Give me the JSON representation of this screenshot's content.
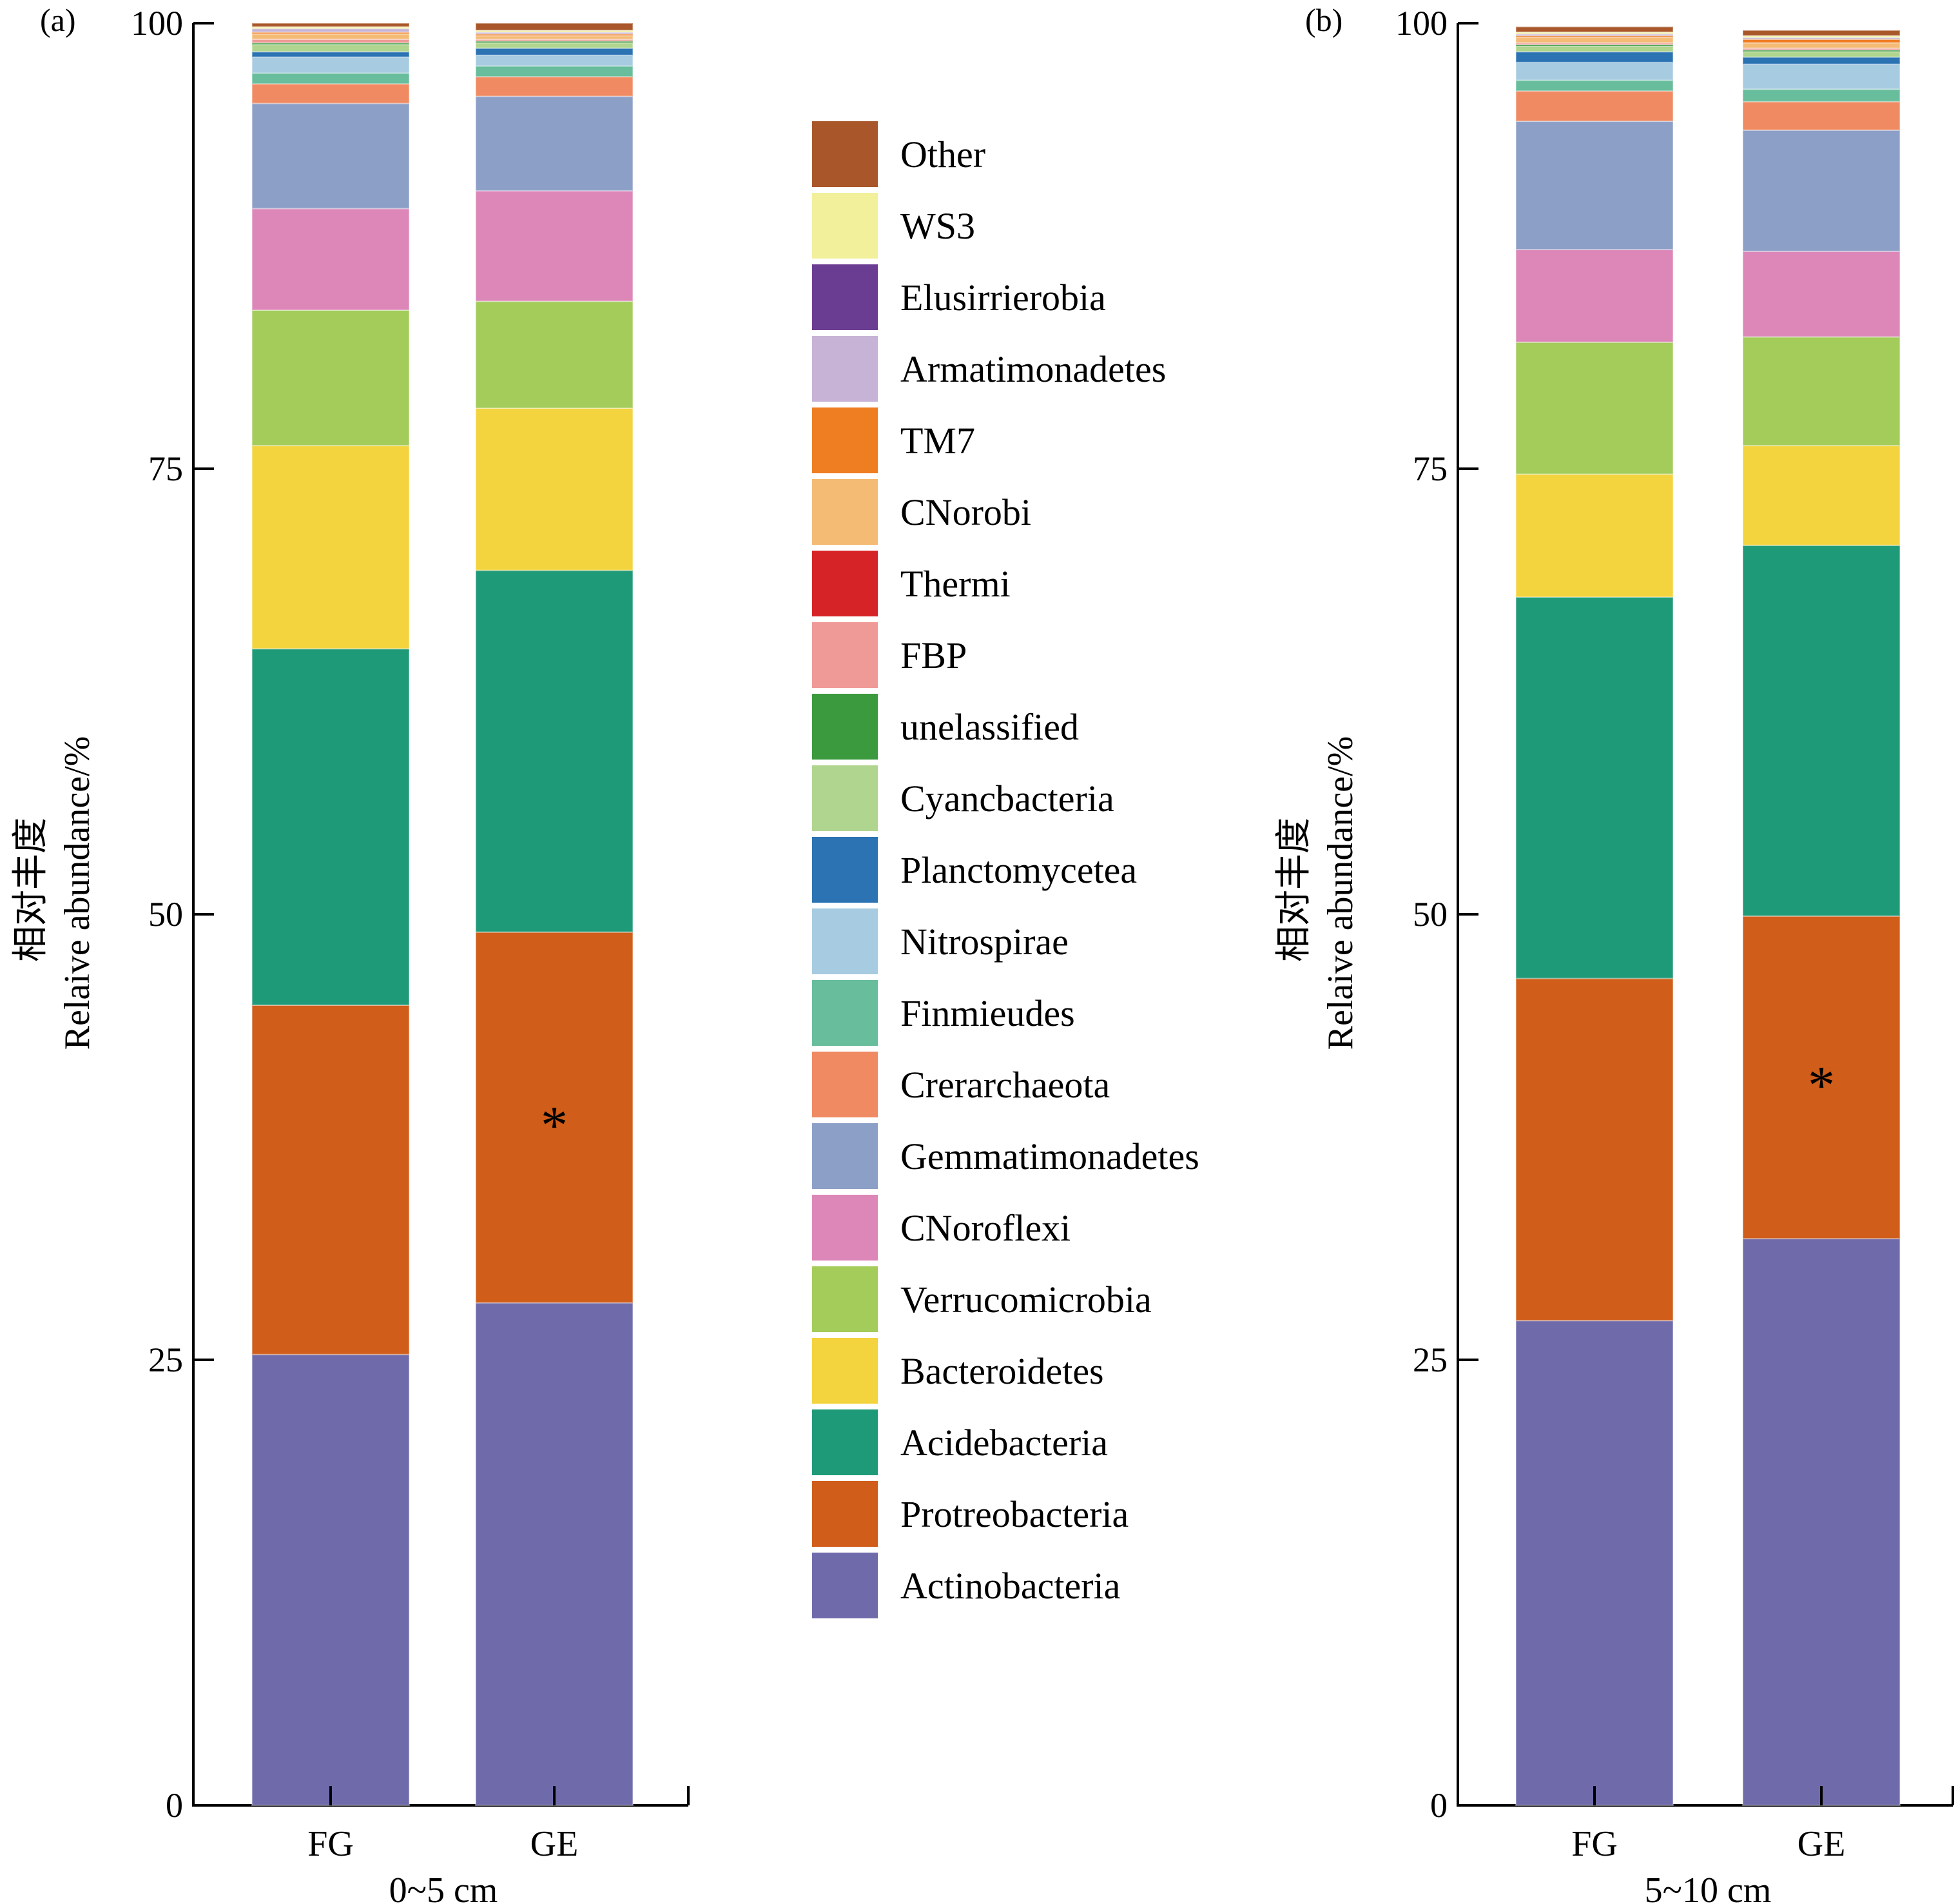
{
  "legend": {
    "entries": [
      {
        "name": "Other",
        "color": "#a9572a"
      },
      {
        "name": "WS3",
        "color": "#f2f09b"
      },
      {
        "name": "Elusirrierobia",
        "color": "#6a3d93"
      },
      {
        "name": "Armatimonadetes",
        "color": "#c6b3d6"
      },
      {
        "name": "TM7",
        "color": "#ef7d22"
      },
      {
        "name": "CNorobi",
        "color": "#f4bb75"
      },
      {
        "name": "Thermi",
        "color": "#d62327"
      },
      {
        "name": "FBP",
        "color": "#f09a98"
      },
      {
        "name": "unelassified",
        "color": "#3a9a3d"
      },
      {
        "name": "Cyancbacteria",
        "color": "#b0d58e"
      },
      {
        "name": "Planctomycetea",
        "color": "#2b73b3"
      },
      {
        "name": "Nitrospirae",
        "color": "#a7cbe0"
      },
      {
        "name": "Finmieudes",
        "color": "#67bd9c"
      },
      {
        "name": "Crerarchaeota",
        "color": "#ef8a62"
      },
      {
        "name": "Gemmatimonadetes",
        "color": "#8c9fc7"
      },
      {
        "name": "CNoroflexi",
        "color": "#dc87b8"
      },
      {
        "name": "Verrucomicrobia",
        "color": "#a3cc5b"
      },
      {
        "name": "Bacteroidetes",
        "color": "#f3d43e"
      },
      {
        "name": "Acidebacteria",
        "color": "#1f9a78"
      },
      {
        "name": "Protreobacteria",
        "color": "#d05d19"
      },
      {
        "name": "Actinobacteria",
        "color": "#6f6bab"
      }
    ]
  },
  "chart_data": [
    {
      "type": "bar",
      "stacked": true,
      "panel_label": "(a)",
      "title": "",
      "xlabel": "0~5 cm",
      "ylabel_cn": "相对丰度",
      "ylabel": "Relaive abundance/%",
      "ylim": [
        0,
        100
      ],
      "yticks": [
        "0",
        "25",
        "50",
        "75",
        "100"
      ],
      "categories": [
        "FG",
        "GE"
      ],
      "significance": [
        {
          "category": "GE",
          "series": "Protreobacteria",
          "mark": "*"
        }
      ],
      "series": [
        {
          "name": "Actinobacteria",
          "values": [
            25.3,
            28.2
          ]
        },
        {
          "name": "Protreobacteria",
          "values": [
            19.6,
            20.8
          ]
        },
        {
          "name": "Acidebacteria",
          "values": [
            20.0,
            20.3
          ]
        },
        {
          "name": "Bacteroidetes",
          "values": [
            11.4,
            9.1
          ]
        },
        {
          "name": "Verrucomicrobia",
          "values": [
            7.6,
            6.0
          ]
        },
        {
          "name": "CNoroflexi",
          "values": [
            5.7,
            6.2
          ]
        },
        {
          "name": "Gemmatimonadetes",
          "values": [
            5.9,
            5.3
          ]
        },
        {
          "name": "Crerarchaeota",
          "values": [
            1.1,
            1.1
          ]
        },
        {
          "name": "Finmieudes",
          "values": [
            0.6,
            0.6
          ]
        },
        {
          "name": "Nitrospirae",
          "values": [
            0.9,
            0.6
          ]
        },
        {
          "name": "Planctomycetea",
          "values": [
            0.3,
            0.4
          ]
        },
        {
          "name": "Cyancbacteria",
          "values": [
            0.4,
            0.3
          ]
        },
        {
          "name": "unelassified",
          "values": [
            0.1,
            0.1
          ]
        },
        {
          "name": "FBP",
          "values": [
            0.2,
            0.1
          ]
        },
        {
          "name": "Thermi",
          "values": [
            0.0,
            0.0
          ]
        },
        {
          "name": "CNorobi",
          "values": [
            0.3,
            0.2
          ]
        },
        {
          "name": "TM7",
          "values": [
            0.1,
            0.1
          ]
        },
        {
          "name": "Armatimonadetes",
          "values": [
            0.2,
            0.1
          ]
        },
        {
          "name": "Elusirrierobia",
          "values": [
            0.0,
            0.0
          ]
        },
        {
          "name": "WS3",
          "values": [
            0.1,
            0.1
          ]
        },
        {
          "name": "Other",
          "values": [
            0.2,
            0.4
          ]
        }
      ]
    },
    {
      "type": "bar",
      "stacked": true,
      "panel_label": "(b)",
      "title": "",
      "xlabel": "5~10 cm",
      "ylabel_cn": "相对丰度",
      "ylabel": "Relaive abundance/%",
      "ylim": [
        0,
        100
      ],
      "yticks": [
        "0",
        "25",
        "50",
        "75",
        "100"
      ],
      "categories": [
        "FG",
        "GE"
      ],
      "significance": [
        {
          "category": "GE",
          "series": "Protreobacteria",
          "mark": "*"
        }
      ],
      "series": [
        {
          "name": "Actinobacteria",
          "values": [
            27.2,
            31.8
          ]
        },
        {
          "name": "Protreobacteria",
          "values": [
            19.2,
            18.1
          ]
        },
        {
          "name": "Acidebacteria",
          "values": [
            21.4,
            20.8
          ]
        },
        {
          "name": "Bacteroidetes",
          "values": [
            6.9,
            5.6
          ]
        },
        {
          "name": "Verrucomicrobia",
          "values": [
            7.4,
            6.1
          ]
        },
        {
          "name": "CNoroflexi",
          "values": [
            5.2,
            4.8
          ]
        },
        {
          "name": "Gemmatimonadetes",
          "values": [
            7.2,
            6.8
          ]
        },
        {
          "name": "Crerarchaeota",
          "values": [
            1.7,
            1.6
          ]
        },
        {
          "name": "Finmieudes",
          "values": [
            0.6,
            0.7
          ]
        },
        {
          "name": "Nitrospirae",
          "values": [
            1.0,
            1.4
          ]
        },
        {
          "name": "Planctomycetea",
          "values": [
            0.6,
            0.4
          ]
        },
        {
          "name": "Cyancbacteria",
          "values": [
            0.3,
            0.3
          ]
        },
        {
          "name": "unelassified",
          "values": [
            0.1,
            0.1
          ]
        },
        {
          "name": "FBP",
          "values": [
            0.1,
            0.1
          ]
        },
        {
          "name": "Thermi",
          "values": [
            0.0,
            0.0
          ]
        },
        {
          "name": "CNorobi",
          "values": [
            0.3,
            0.3
          ]
        },
        {
          "name": "TM7",
          "values": [
            0.1,
            0.2
          ]
        },
        {
          "name": "Armatimonadetes",
          "values": [
            0.1,
            0.1
          ]
        },
        {
          "name": "Elusirrierobia",
          "values": [
            0.0,
            0.0
          ]
        },
        {
          "name": "WS3",
          "values": [
            0.1,
            0.1
          ]
        },
        {
          "name": "Other",
          "values": [
            0.3,
            0.3
          ]
        }
      ]
    }
  ]
}
